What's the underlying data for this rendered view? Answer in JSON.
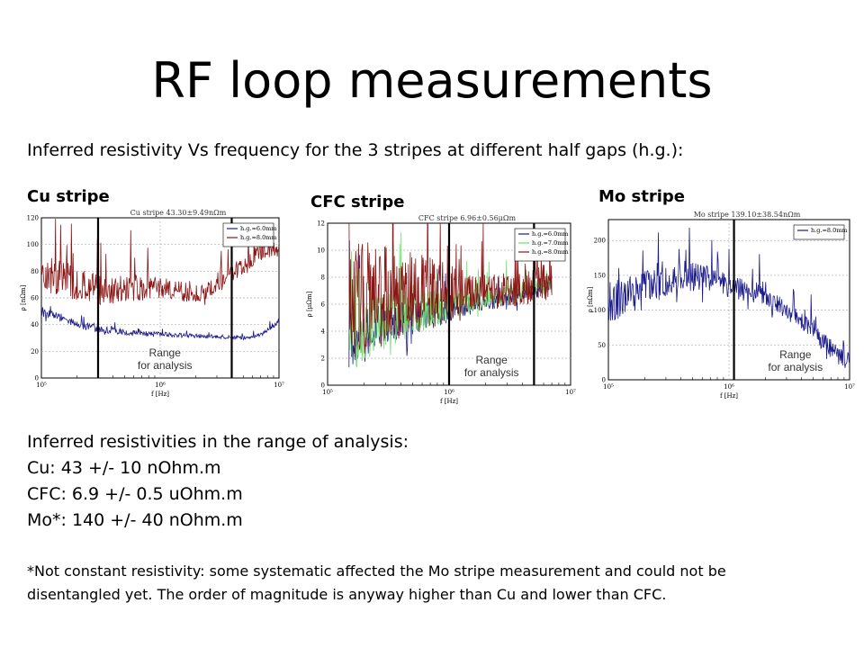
{
  "slide": {
    "title": "RF loop measurements",
    "subtitle": "Inferred resistivity Vs frequency for the 3 stripes at different half gaps (h.g.):",
    "results_heading": "Inferred resistivities in the range of analysis:",
    "results": [
      "Cu: 43 +/- 10 nOhm.m",
      "CFC: 6.9 +/- 0.5 uOhm.m",
      "Mo*: 140 +/- 40 nOhm.m"
    ],
    "footnote_lines": [
      "*Not constant resistivity: some systematic affected the Mo stripe measurement and could not be",
      "disentangled yet. The order of magnitude is anyway higher than Cu and lower than CFC."
    ]
  },
  "colors": {
    "series_blue": "#1a1a8c",
    "series_green": "#66e066",
    "series_red": "#8c1414",
    "grid": "#b0b0b0"
  },
  "chart_data": [
    {
      "type": "line",
      "panel_label": "Cu stripe",
      "title": "Cu stripe 43.30±9.49nΩm",
      "xlabel": "f [Hz]",
      "ylabel": "ρ [nΩm]",
      "x_scale": "log",
      "xlim": [
        100000,
        10000000
      ],
      "x_ticks": [
        "10⁵",
        "10⁶",
        "10⁷"
      ],
      "ylim": [
        0,
        120
      ],
      "y_ticks": [
        "0",
        "20",
        "40",
        "60",
        "80",
        "100",
        "120"
      ],
      "annotation": [
        "Range",
        "for analysis"
      ],
      "range_lines": [
        300000,
        4000000
      ],
      "legend": "top-right",
      "series": [
        {
          "name": "h.g.=6.0mm",
          "color": "#1a1a8c",
          "noise": 2.5,
          "points": [
            [
              100000,
              50
            ],
            [
              150000,
              45
            ],
            [
              200000,
              40
            ],
            [
              300000,
              37
            ],
            [
              500000,
              34
            ],
            [
              800000,
              33
            ],
            [
              1500000,
              32
            ],
            [
              3000000,
              31
            ],
            [
              5000000,
              30
            ],
            [
              7000000,
              32
            ],
            [
              10000000,
              42
            ]
          ]
        },
        {
          "name": "h.g.=8.0mm",
          "color": "#8c1414",
          "noise": 11,
          "points": [
            [
              100000,
              80
            ],
            [
              150000,
              75
            ],
            [
              200000,
              70
            ],
            [
              300000,
              65
            ],
            [
              500000,
              67
            ],
            [
              1000000,
              68
            ],
            [
              2000000,
              63
            ],
            [
              3000000,
              68
            ],
            [
              4000000,
              78
            ],
            [
              6000000,
              90
            ],
            [
              10000000,
              98
            ]
          ]
        }
      ]
    },
    {
      "type": "line",
      "panel_label": "CFC stripe",
      "title": "CFC stripe 6.96±0.56μΩm",
      "xlabel": "f [Hz]",
      "ylabel": "ρ [μΩm]",
      "x_scale": "log",
      "xlim": [
        100000,
        10000000
      ],
      "x_ticks": [
        "10⁵",
        "10⁶",
        "10⁷"
      ],
      "ylim": [
        0,
        12
      ],
      "y_ticks": [
        "0",
        "2",
        "4",
        "6",
        "8",
        "10",
        "12"
      ],
      "annotation": [
        "Range",
        "for analysis"
      ],
      "range_lines": [
        1000000,
        5000000
      ],
      "legend": "top-right",
      "series": [
        {
          "name": "h.g.=6.0mm",
          "color": "#1a1a8c",
          "noise": 0.9,
          "points": [
            [
              150000,
              3.5
            ],
            [
              300000,
              4.5
            ],
            [
              1000000,
              5.5
            ],
            [
              3000000,
              6.4
            ],
            [
              5000000,
              6.9
            ],
            [
              7000000,
              7.6
            ]
          ]
        },
        {
          "name": "h.g.=7.0mm",
          "color": "#66e066",
          "noise": 1.2,
          "points": [
            [
              150000,
              3.5
            ],
            [
              300000,
              4.8
            ],
            [
              1000000,
              6.0
            ],
            [
              3000000,
              6.7
            ],
            [
              5000000,
              7.1
            ],
            [
              7000000,
              7.6
            ]
          ]
        },
        {
          "name": "h.g.=8.0mm",
          "color": "#8c1414",
          "noise": 2.2,
          "points": [
            [
              150000,
              6
            ],
            [
              300000,
              6.8
            ],
            [
              1000000,
              6.8
            ],
            [
              3000000,
              7.0
            ],
            [
              5000000,
              7.4
            ],
            [
              7000000,
              7.9
            ]
          ]
        }
      ]
    },
    {
      "type": "line",
      "panel_label": "Mo stripe",
      "title": "Mo stripe 139.10±38.54nΩm",
      "xlabel": "f [Hz]",
      "ylabel": "ρ [nΩm]",
      "x_scale": "log",
      "xlim": [
        100000,
        10000000
      ],
      "x_ticks": [
        "10⁵",
        "10⁶",
        "10⁷"
      ],
      "ylim": [
        0,
        230
      ],
      "y_ticks": [
        "0",
        "50",
        "100",
        "150",
        "200"
      ],
      "annotation": [
        "Range",
        "for analysis"
      ],
      "range_lines": [
        1100000
      ],
      "legend": "top-right",
      "series": [
        {
          "name": "h.g.=8.0mm",
          "color": "#1a1a8c",
          "noise": 22,
          "points": [
            [
              100000,
              110
            ],
            [
              200000,
              130
            ],
            [
              400000,
              150
            ],
            [
              700000,
              145
            ],
            [
              1000000,
              135
            ],
            [
              2000000,
              120
            ],
            [
              4000000,
              85
            ],
            [
              6000000,
              55
            ],
            [
              8000000,
              35
            ],
            [
              10000000,
              25
            ]
          ]
        }
      ]
    }
  ]
}
